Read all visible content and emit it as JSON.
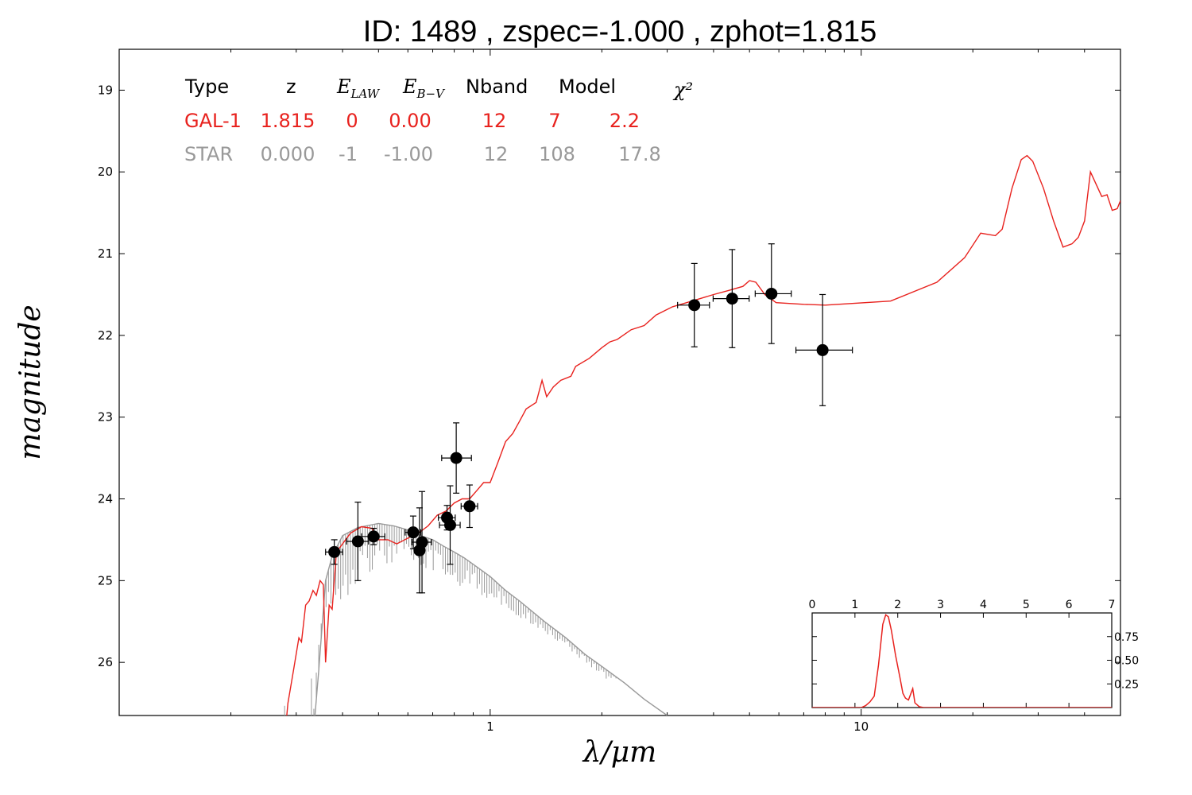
{
  "figure": {
    "title": "ID:  1489  , zspec=-1.000 , zphot=1.815"
  },
  "chart_data": [
    {
      "type": "scatter",
      "xlabel": "λ/μm",
      "ylabel": "magnitude",
      "x_scale": "log",
      "xlim": [
        0.1,
        50
      ],
      "ylim": [
        26.65,
        18.5
      ],
      "y_inverted": true,
      "x_ticks": [
        1,
        10
      ],
      "x_tick_labels": [
        "1",
        "10"
      ],
      "y_ticks": [
        19,
        20,
        21,
        22,
        23,
        24,
        25,
        26
      ],
      "y_tick_labels": [
        "19",
        "20",
        "21",
        "22",
        "23",
        "24",
        "25",
        "26"
      ],
      "colors": {
        "gal": "#e8221e",
        "star": "#999999",
        "points": "#000000"
      },
      "fit_table": {
        "headers": [
          "Type",
          "z",
          "E_LAW",
          "E_B-V",
          "Nband",
          "Model",
          "χ²"
        ],
        "rows": [
          {
            "type": "GAL-1",
            "z": "1.815",
            "elaw": "0",
            "ebv": "0.00",
            "nband": "12",
            "model": "7",
            "chi2": "2.2",
            "color": "#e8221e"
          },
          {
            "type": "STAR",
            "z": "0.000",
            "elaw": "-1",
            "ebv": "-1.00",
            "nband": "12",
            "model": "108",
            "chi2": "17.8",
            "color": "#999999"
          }
        ]
      },
      "points": [
        {
          "x": 0.38,
          "y": 24.65,
          "xerr_lo": 0.02,
          "xerr_hi": 0.02,
          "yerr": 0.15
        },
        {
          "x": 0.44,
          "y": 24.52,
          "xerr_lo": 0.03,
          "xerr_hi": 0.03,
          "yerr": 0.48
        },
        {
          "x": 0.485,
          "y": 24.46,
          "xerr_lo": 0.035,
          "xerr_hi": 0.035,
          "yerr": 0.1
        },
        {
          "x": 0.62,
          "y": 24.41,
          "xerr_lo": 0.03,
          "xerr_hi": 0.03,
          "yerr": 0.2
        },
        {
          "x": 0.645,
          "y": 24.63,
          "xerr_lo": 0.02,
          "xerr_hi": 0.02,
          "yerr": 0.52
        },
        {
          "x": 0.655,
          "y": 24.53,
          "xerr_lo": 0.04,
          "xerr_hi": 0.04,
          "yerr": 0.62
        },
        {
          "x": 0.765,
          "y": 24.23,
          "xerr_lo": 0.04,
          "xerr_hi": 0.04,
          "yerr": 0.15
        },
        {
          "x": 0.78,
          "y": 24.32,
          "xerr_lo": 0.05,
          "xerr_hi": 0.05,
          "yerr": 0.48
        },
        {
          "x": 0.81,
          "y": 23.5,
          "xerr_lo": 0.07,
          "xerr_hi": 0.08,
          "yerr": 0.43
        },
        {
          "x": 0.88,
          "y": 24.09,
          "xerr_lo": 0.045,
          "xerr_hi": 0.045,
          "yerr": 0.26
        },
        {
          "x": 3.55,
          "y": 21.63,
          "xerr_lo": 0.35,
          "xerr_hi": 0.35,
          "yerr": 0.51
        },
        {
          "x": 4.49,
          "y": 21.55,
          "xerr_lo": 0.5,
          "xerr_hi": 0.5,
          "yerr": 0.6
        },
        {
          "x": 5.73,
          "y": 21.49,
          "xerr_lo": 0.55,
          "xerr_hi": 0.75,
          "yerr": 0.61
        },
        {
          "x": 7.87,
          "y": 22.18,
          "xerr_lo": 1.2,
          "xerr_hi": 1.6,
          "yerr": 0.68
        }
      ],
      "gal_model": [
        [
          0.272,
          27.5
        ],
        [
          0.285,
          26.5
        ],
        [
          0.295,
          26.1
        ],
        [
          0.305,
          25.7
        ],
        [
          0.31,
          25.75
        ],
        [
          0.318,
          25.3
        ],
        [
          0.325,
          25.25
        ],
        [
          0.333,
          25.12
        ],
        [
          0.34,
          25.18
        ],
        [
          0.348,
          25.0
        ],
        [
          0.355,
          25.05
        ],
        [
          0.36,
          26.0
        ],
        [
          0.368,
          25.3
        ],
        [
          0.375,
          25.35
        ],
        [
          0.385,
          24.65
        ],
        [
          0.4,
          24.55
        ],
        [
          0.42,
          24.42
        ],
        [
          0.45,
          24.34
        ],
        [
          0.48,
          24.36
        ],
        [
          0.5,
          24.5
        ],
        [
          0.53,
          24.5
        ],
        [
          0.56,
          24.55
        ],
        [
          0.6,
          24.48
        ],
        [
          0.64,
          24.42
        ],
        [
          0.68,
          24.33
        ],
        [
          0.72,
          24.2
        ],
        [
          0.76,
          24.15
        ],
        [
          0.8,
          24.05
        ],
        [
          0.84,
          24.0
        ],
        [
          0.88,
          24.0
        ],
        [
          0.92,
          23.9
        ],
        [
          0.96,
          23.8
        ],
        [
          1.0,
          23.8
        ],
        [
          1.05,
          23.55
        ],
        [
          1.1,
          23.3
        ],
        [
          1.15,
          23.2
        ],
        [
          1.2,
          23.05
        ],
        [
          1.25,
          22.9
        ],
        [
          1.33,
          22.82
        ],
        [
          1.38,
          22.55
        ],
        [
          1.42,
          22.75
        ],
        [
          1.48,
          22.63
        ],
        [
          1.55,
          22.55
        ],
        [
          1.65,
          22.5
        ],
        [
          1.7,
          22.38
        ],
        [
          1.85,
          22.28
        ],
        [
          2.0,
          22.15
        ],
        [
          2.1,
          22.08
        ],
        [
          2.2,
          22.05
        ],
        [
          2.4,
          21.93
        ],
        [
          2.6,
          21.88
        ],
        [
          2.8,
          21.75
        ],
        [
          3.1,
          21.65
        ],
        [
          3.5,
          21.58
        ],
        [
          4.0,
          21.5
        ],
        [
          4.4,
          21.45
        ],
        [
          4.8,
          21.4
        ],
        [
          5.0,
          21.33
        ],
        [
          5.2,
          21.35
        ],
        [
          5.5,
          21.5
        ],
        [
          5.9,
          21.6
        ],
        [
          7.0,
          21.62
        ],
        [
          8.0,
          21.63
        ],
        [
          12.0,
          21.58
        ],
        [
          16.0,
          21.35
        ],
        [
          19.0,
          21.05
        ],
        [
          21.0,
          20.75
        ],
        [
          23.0,
          20.78
        ],
        [
          24.0,
          20.7
        ],
        [
          25.5,
          20.2
        ],
        [
          27.0,
          19.85
        ],
        [
          28.0,
          19.8
        ],
        [
          29.0,
          19.87
        ],
        [
          31.0,
          20.2
        ],
        [
          33.0,
          20.6
        ],
        [
          35.0,
          20.92
        ],
        [
          37.0,
          20.88
        ],
        [
          38.5,
          20.8
        ],
        [
          40.0,
          20.6
        ],
        [
          41.5,
          20.0
        ],
        [
          44.5,
          20.3
        ],
        [
          46.0,
          20.28
        ],
        [
          47.5,
          20.47
        ],
        [
          49.0,
          20.45
        ],
        [
          50.0,
          20.35
        ]
      ],
      "star_model": [
        [
          0.325,
          27.5
        ],
        [
          0.345,
          26.1
        ],
        [
          0.36,
          25.0
        ],
        [
          0.375,
          24.7
        ],
        [
          0.4,
          24.45
        ],
        [
          0.44,
          24.35
        ],
        [
          0.5,
          24.3
        ],
        [
          0.55,
          24.33
        ],
        [
          0.6,
          24.38
        ],
        [
          0.65,
          24.45
        ],
        [
          0.7,
          24.5
        ],
        [
          0.75,
          24.58
        ],
        [
          0.8,
          24.65
        ],
        [
          0.85,
          24.72
        ],
        [
          0.9,
          24.8
        ],
        [
          1.0,
          24.95
        ],
        [
          1.1,
          25.12
        ],
        [
          1.2,
          25.25
        ],
        [
          1.4,
          25.5
        ],
        [
          1.6,
          25.7
        ],
        [
          1.8,
          25.9
        ],
        [
          2.0,
          26.05
        ],
        [
          2.3,
          26.25
        ],
        [
          2.6,
          26.45
        ],
        [
          3.0,
          26.65
        ]
      ],
      "star_absorption": [
        [
          0.275,
          26.45
        ],
        [
          0.285,
          26.5
        ],
        [
          0.295,
          26.45
        ],
        [
          0.305,
          26.55
        ],
        [
          0.318,
          26.3
        ],
        [
          0.332,
          26.0
        ],
        [
          0.34,
          25.6
        ],
        [
          0.352,
          25.5
        ],
        [
          0.37,
          25.4
        ],
        [
          0.39,
          25.35
        ],
        [
          0.41,
          25.2
        ],
        [
          0.44,
          25.0
        ],
        [
          0.47,
          24.9
        ],
        [
          0.51,
          24.9
        ],
        [
          0.55,
          24.85
        ],
        [
          0.6,
          24.9
        ],
        [
          0.65,
          24.88
        ],
        [
          0.72,
          24.95
        ],
        [
          0.8,
          25.05
        ],
        [
          0.87,
          25.1
        ],
        [
          1.25,
          25.5
        ],
        [
          1.6,
          25.8
        ],
        [
          1.9,
          26.1
        ],
        [
          2.05,
          26.2
        ],
        [
          2.25,
          26.2
        ]
      ]
    },
    {
      "type": "line",
      "xlim": [
        0,
        7
      ],
      "ylim": [
        0,
        1.0
      ],
      "x_ticks": [
        0,
        1,
        2,
        3,
        4,
        5,
        6,
        7
      ],
      "x_tick_labels": [
        "0",
        "1",
        "2",
        "3",
        "4",
        "5",
        "6",
        "7"
      ],
      "y_ticks": [
        0.25,
        0.5,
        0.75
      ],
      "y_tick_labels": [
        "0.25",
        "0.50",
        "0.75"
      ],
      "color": "#e8221e",
      "pdf": [
        [
          0,
          0.0
        ],
        [
          1.15,
          0.0
        ],
        [
          1.25,
          0.02
        ],
        [
          1.35,
          0.06
        ],
        [
          1.45,
          0.12
        ],
        [
          1.55,
          0.45
        ],
        [
          1.65,
          0.88
        ],
        [
          1.72,
          0.98
        ],
        [
          1.78,
          0.96
        ],
        [
          1.85,
          0.82
        ],
        [
          1.95,
          0.55
        ],
        [
          2.05,
          0.32
        ],
        [
          2.12,
          0.15
        ],
        [
          2.18,
          0.1
        ],
        [
          2.25,
          0.08
        ],
        [
          2.3,
          0.14
        ],
        [
          2.35,
          0.2
        ],
        [
          2.4,
          0.05
        ],
        [
          2.5,
          0.01
        ],
        [
          2.6,
          0.0
        ],
        [
          7,
          0.0
        ]
      ]
    }
  ]
}
